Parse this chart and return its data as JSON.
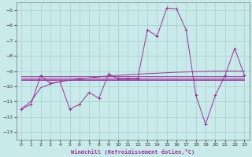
{
  "background_color": "#c8eaea",
  "grid_color": "#aacccc",
  "line_color": "#993399",
  "xlabel": "Windchill (Refroidissement éolien,°C)",
  "ylim": [
    -13.5,
    -4.5
  ],
  "xlim": [
    -0.5,
    23.5
  ],
  "yticks": [
    -13,
    -12,
    -11,
    -10,
    -9,
    -8,
    -7,
    -6,
    -5
  ],
  "xticks": [
    0,
    1,
    2,
    3,
    4,
    5,
    6,
    7,
    8,
    9,
    10,
    11,
    12,
    13,
    14,
    15,
    16,
    17,
    18,
    19,
    20,
    21,
    22,
    23
  ],
  "y_main": [
    -11.5,
    -11.2,
    -9.3,
    -9.8,
    -9.7,
    -11.5,
    -11.2,
    -10.4,
    -10.8,
    -9.2,
    -9.5,
    -9.5,
    -9.5,
    -6.3,
    -6.7,
    -4.85,
    -4.9,
    -6.3,
    -10.6,
    -12.5,
    -10.6,
    -9.3,
    -7.5,
    -9.3
  ],
  "flat_lines": [
    [
      -9.35,
      -9.35,
      -9.35,
      -9.35,
      -9.35,
      -9.35,
      -9.35,
      -9.35,
      -9.35,
      -9.35,
      -9.35,
      -9.35,
      -9.35,
      -9.35,
      -9.35,
      -9.35,
      -9.35,
      -9.35,
      -9.35,
      -9.35,
      -9.35,
      -9.35,
      -9.35,
      -9.35
    ],
    [
      -9.45,
      -9.45,
      -9.45,
      -9.45,
      -9.45,
      -9.45,
      -9.45,
      -9.45,
      -9.45,
      -9.45,
      -9.45,
      -9.45,
      -9.45,
      -9.45,
      -9.45,
      -9.45,
      -9.45,
      -9.45,
      -9.45,
      -9.45,
      -9.45,
      -9.45,
      -9.45,
      -9.45
    ],
    [
      -9.55,
      -9.55,
      -9.55,
      -9.55,
      -9.55,
      -9.55,
      -9.55,
      -9.55,
      -9.55,
      -9.55,
      -9.55,
      -9.55,
      -9.55,
      -9.55,
      -9.55,
      -9.55,
      -9.55,
      -9.55,
      -9.55,
      -9.55,
      -9.55,
      -9.55,
      -9.55,
      -9.55
    ],
    [
      -9.6,
      -9.6,
      -9.6,
      -9.6,
      -9.6,
      -9.6,
      -9.6,
      -9.6,
      -9.6,
      -9.6,
      -9.6,
      -9.6,
      -9.6,
      -9.6,
      -9.6,
      -9.6,
      -9.6,
      -9.6,
      -9.6,
      -9.6,
      -9.6,
      -9.6,
      -9.6,
      -9.6
    ]
  ],
  "trend_line": [
    -11.5,
    -11.0,
    -10.1,
    -9.85,
    -9.7,
    -9.6,
    -9.52,
    -9.45,
    -9.38,
    -9.32,
    -9.28,
    -9.24,
    -9.2,
    -9.17,
    -9.14,
    -9.11,
    -9.08,
    -9.06,
    -9.04,
    -9.02,
    -9.01,
    -9.0,
    -9.0,
    -9.0
  ]
}
